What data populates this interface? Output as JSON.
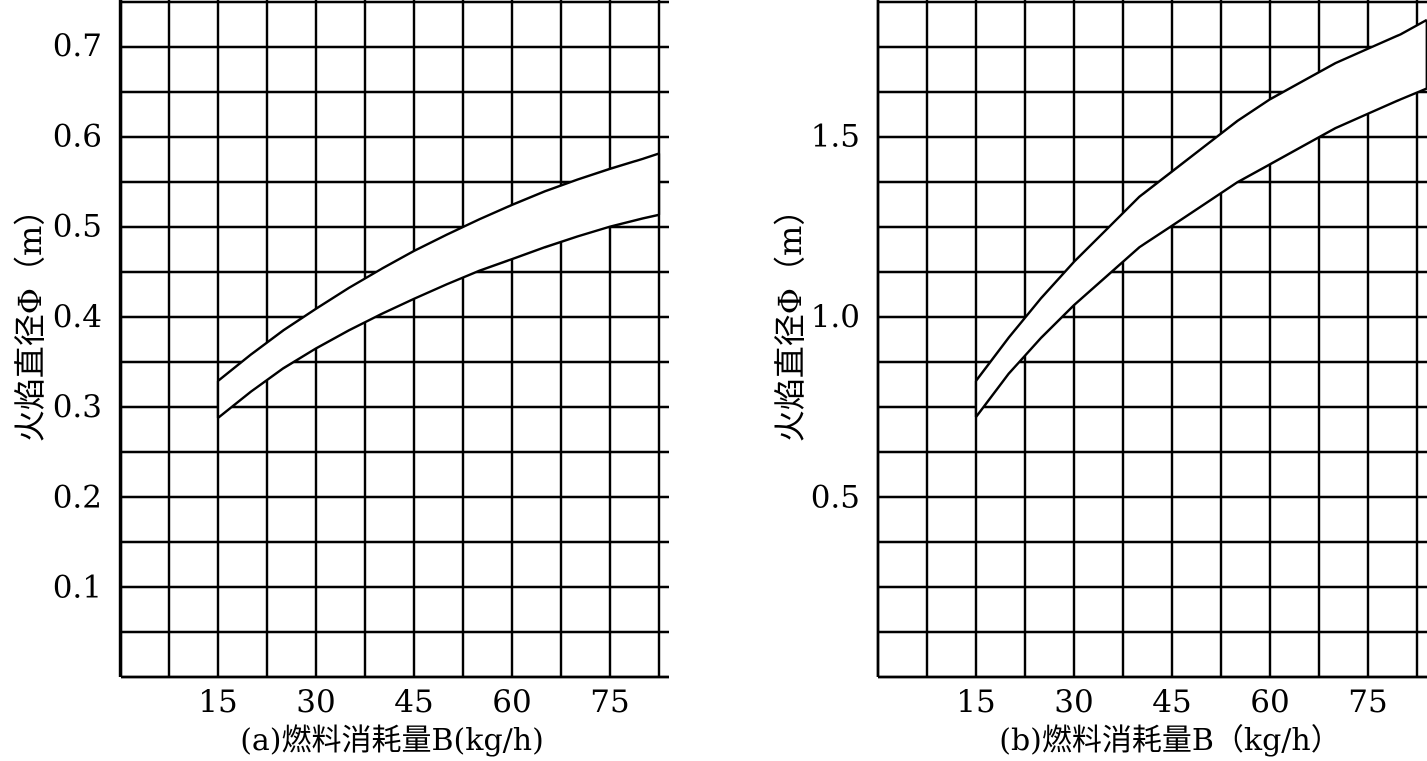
{
  "chart_data": [
    {
      "type": "area",
      "caption": "(a)燃料消耗量B(kg/h)",
      "ylabel": "火焰直径Φ（m）",
      "xticks": [
        15,
        30,
        45,
        60,
        75
      ],
      "yticks": [
        0.1,
        0.2,
        0.3,
        0.4,
        0.5,
        0.6,
        0.7
      ],
      "ytick_labels": [
        "0.1",
        "0.2",
        "0.3",
        "0.4",
        "0.5",
        "0.6",
        "0.7"
      ],
      "xlim": [
        0,
        84
      ],
      "ylim": [
        0,
        0.75
      ],
      "grid": true,
      "series": [
        {
          "x": [
            15,
            20,
            25,
            30,
            35,
            40,
            45,
            50,
            55,
            60,
            65,
            70,
            75,
            80,
            82.5
          ],
          "values": [
            0.328,
            0.357,
            0.384,
            0.408,
            0.431,
            0.452,
            0.472,
            0.49,
            0.507,
            0.523,
            0.538,
            0.551,
            0.563,
            0.574,
            0.58
          ]
        },
        {
          "x": [
            15,
            20,
            25,
            30,
            35,
            40,
            45,
            50,
            55,
            60,
            65,
            70,
            75,
            80,
            82.5
          ],
          "values": [
            0.287,
            0.316,
            0.342,
            0.364,
            0.384,
            0.402,
            0.419,
            0.435,
            0.45,
            0.463,
            0.476,
            0.488,
            0.499,
            0.508,
            0.512
          ]
        }
      ]
    },
    {
      "type": "area",
      "caption": "(b)燃料消耗量B（kg/h）",
      "ylabel": "火焰直径Φ（m）",
      "xticks": [
        15,
        30,
        45,
        60,
        75
      ],
      "yticks": [
        0.5,
        1.0,
        1.5
      ],
      "ytick_labels": [
        "0.5",
        "1.0",
        "1.5"
      ],
      "xlim": [
        0,
        84
      ],
      "ylim": [
        0,
        1.875
      ],
      "grid": true,
      "series": [
        {
          "x": [
            15,
            20,
            25,
            30,
            35,
            40,
            45,
            50,
            55,
            60,
            65,
            70,
            75,
            80,
            84
          ],
          "values": [
            0.82,
            0.94,
            1.05,
            1.15,
            1.24,
            1.33,
            1.4,
            1.47,
            1.54,
            1.6,
            1.65,
            1.7,
            1.74,
            1.78,
            1.82
          ]
        },
        {
          "x": [
            15,
            20,
            25,
            30,
            35,
            40,
            45,
            50,
            55,
            60,
            65,
            70,
            75,
            80,
            84
          ],
          "values": [
            0.72,
            0.84,
            0.94,
            1.03,
            1.11,
            1.19,
            1.25,
            1.31,
            1.37,
            1.42,
            1.47,
            1.52,
            1.56,
            1.6,
            1.63
          ]
        }
      ]
    }
  ]
}
